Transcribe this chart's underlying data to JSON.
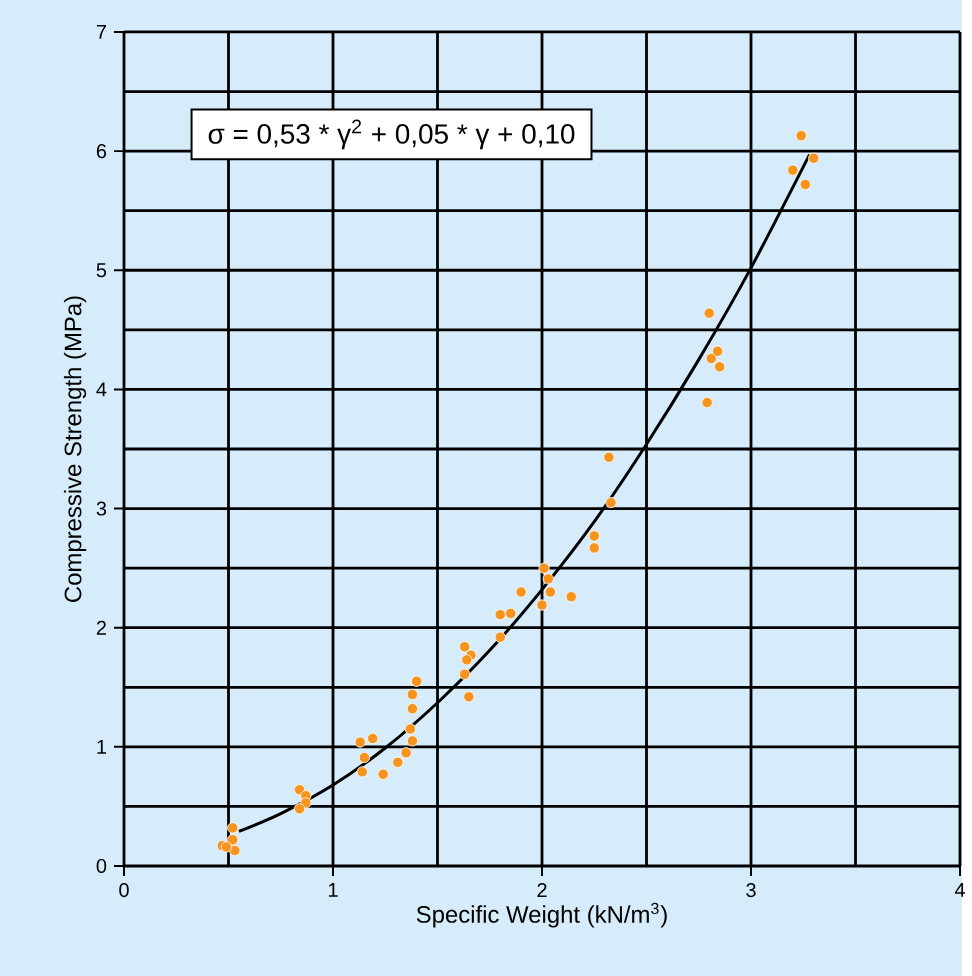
{
  "chart_data": {
    "type": "scatter",
    "xlabel": "Specific Weight  (kN/m$^{3}$)",
    "ylabel": "Compressive Strength (MPa)",
    "annotations": [
      "σ = 0,53 * γ$^{2}$ + 0,05 * γ + 0,10"
    ],
    "xlim": [
      0,
      4
    ],
    "ylim": [
      0,
      7
    ],
    "xticks": [
      0,
      {
        "value": 0.5,
        "label": null
      },
      1,
      {
        "value": 1.5,
        "label": null
      },
      2,
      {
        "value": 2.5,
        "label": null
      },
      3,
      {
        "value": 3.5,
        "label": null
      },
      4
    ],
    "yticks": [
      0,
      {
        "value": 0.5,
        "label": null
      },
      1,
      {
        "value": 1.5,
        "label": null
      },
      2,
      {
        "value": 2.5,
        "label": null
      },
      3,
      {
        "value": 3.5,
        "label": null
      },
      4,
      {
        "value": 4.5,
        "label": null
      },
      5,
      {
        "value": 5.5,
        "label": null
      },
      6,
      {
        "value": 6.5,
        "label": null
      },
      7
    ],
    "grid": true,
    "marker": "circle",
    "series": [
      {
        "color": "#f7941d",
        "x": [
          0.47,
          0.52,
          0.52,
          0.53,
          0.49,
          0.84,
          0.87,
          0.87,
          0.84,
          1.13,
          1.19,
          1.15,
          1.14,
          1.24,
          1.31,
          1.35,
          1.38,
          1.37,
          1.38,
          1.38,
          1.4,
          1.63,
          1.66,
          1.64,
          1.63,
          1.65,
          1.8,
          1.8,
          1.85,
          1.9,
          2.0,
          2.04,
          2.03,
          2.01,
          2.14,
          2.25,
          2.25,
          2.33,
          2.32,
          2.79,
          2.85,
          2.81,
          2.84,
          2.8,
          3.2,
          3.26,
          3.3,
          3.24
        ],
        "values": [
          0.17,
          0.32,
          0.22,
          0.13,
          0.16,
          0.64,
          0.59,
          0.53,
          0.48,
          1.04,
          1.07,
          0.91,
          0.79,
          0.77,
          0.87,
          0.95,
          1.05,
          1.15,
          1.32,
          1.44,
          1.55,
          1.84,
          1.77,
          1.73,
          1.61,
          1.42,
          1.92,
          2.11,
          2.12,
          2.3,
          2.19,
          2.3,
          2.41,
          2.5,
          2.26,
          2.67,
          2.77,
          3.05,
          3.43,
          3.89,
          4.19,
          4.26,
          4.32,
          4.64,
          5.84,
          5.72,
          5.94,
          6.13
        ]
      },
      {
        "type": "line",
        "color": "#000000",
        "marker": "none",
        "line_style": "solid",
        "x": [
          0.55,
          0.75,
          1.0,
          1.25,
          1.5,
          1.75,
          2.0,
          2.25,
          2.5,
          2.75,
          3.0,
          3.28
        ],
        "values": [
          0.29,
          0.44,
          0.68,
          0.99,
          1.37,
          1.81,
          2.32,
          2.89,
          3.54,
          4.25,
          5.02,
          5.97
        ]
      }
    ]
  }
}
